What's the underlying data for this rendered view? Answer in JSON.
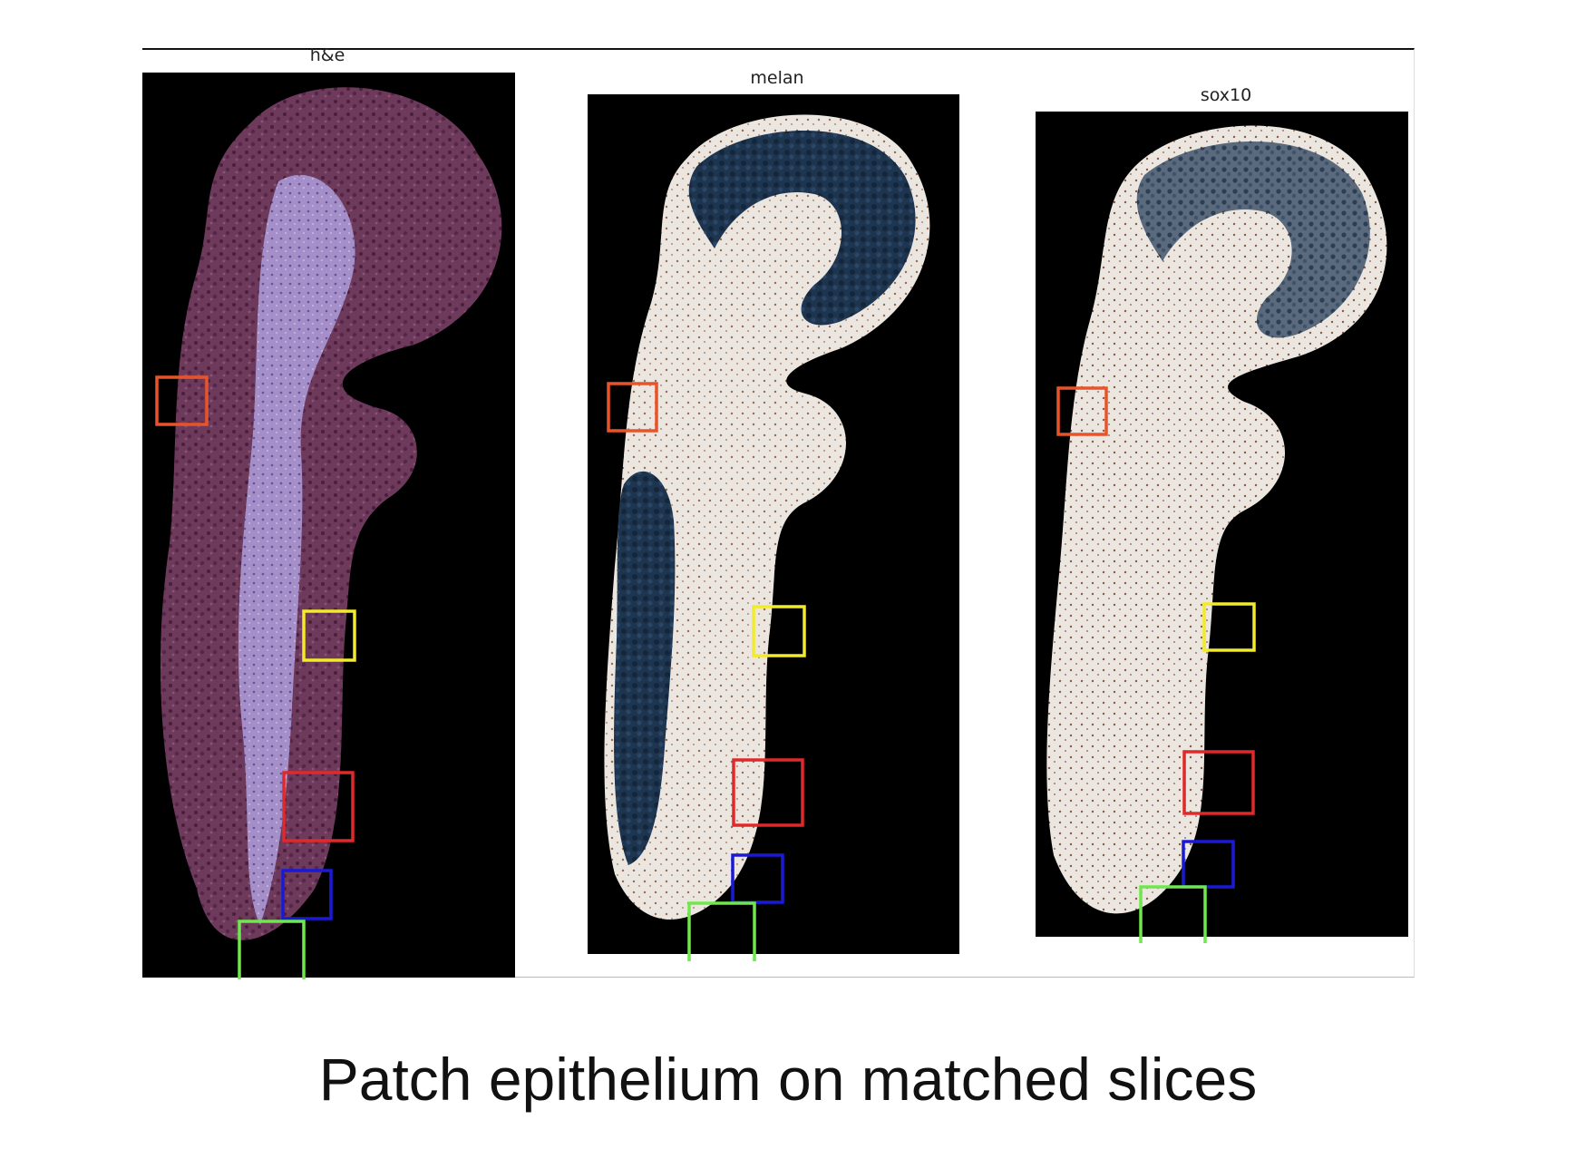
{
  "panels": [
    {
      "title": "h&e",
      "stain": "he"
    },
    {
      "title": "melan",
      "stain": "melan"
    },
    {
      "title": "sox10",
      "stain": "sox10"
    }
  ],
  "patch_colors": {
    "orange": "#e8542a",
    "yellow": "#f2ea2a",
    "red": "#e0292a",
    "blue": "#1a1ad6",
    "green": "#6ee84c"
  },
  "caption": "Patch epithelium on matched slices"
}
